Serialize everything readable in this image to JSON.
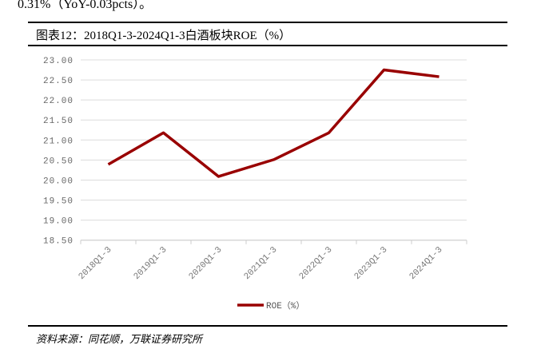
{
  "top_text": "0.31%（YoY-0.03pcts）。",
  "figure_title": "图表12：2018Q1-3-2024Q1-3白酒板块ROE（%）",
  "source": "资料来源：同花顺，万联证券研究所",
  "chart_data": {
    "type": "line",
    "categories": [
      "2018Q1-3",
      "2019Q1-3",
      "2020Q1-3",
      "2021Q1-3",
      "2022Q1-3",
      "2023Q1-3",
      "2024Q1-3"
    ],
    "series": [
      {
        "name": "ROE（%）",
        "values": [
          20.39,
          21.18,
          20.09,
          20.51,
          21.18,
          22.75,
          22.58
        ],
        "color": "#990000"
      }
    ],
    "ylim": [
      18.5,
      23.0
    ],
    "yticks": [
      "18.50",
      "19.00",
      "19.50",
      "20.00",
      "20.50",
      "21.00",
      "21.50",
      "22.00",
      "22.50",
      "23.00"
    ],
    "grid": true,
    "legend": "bottom"
  }
}
